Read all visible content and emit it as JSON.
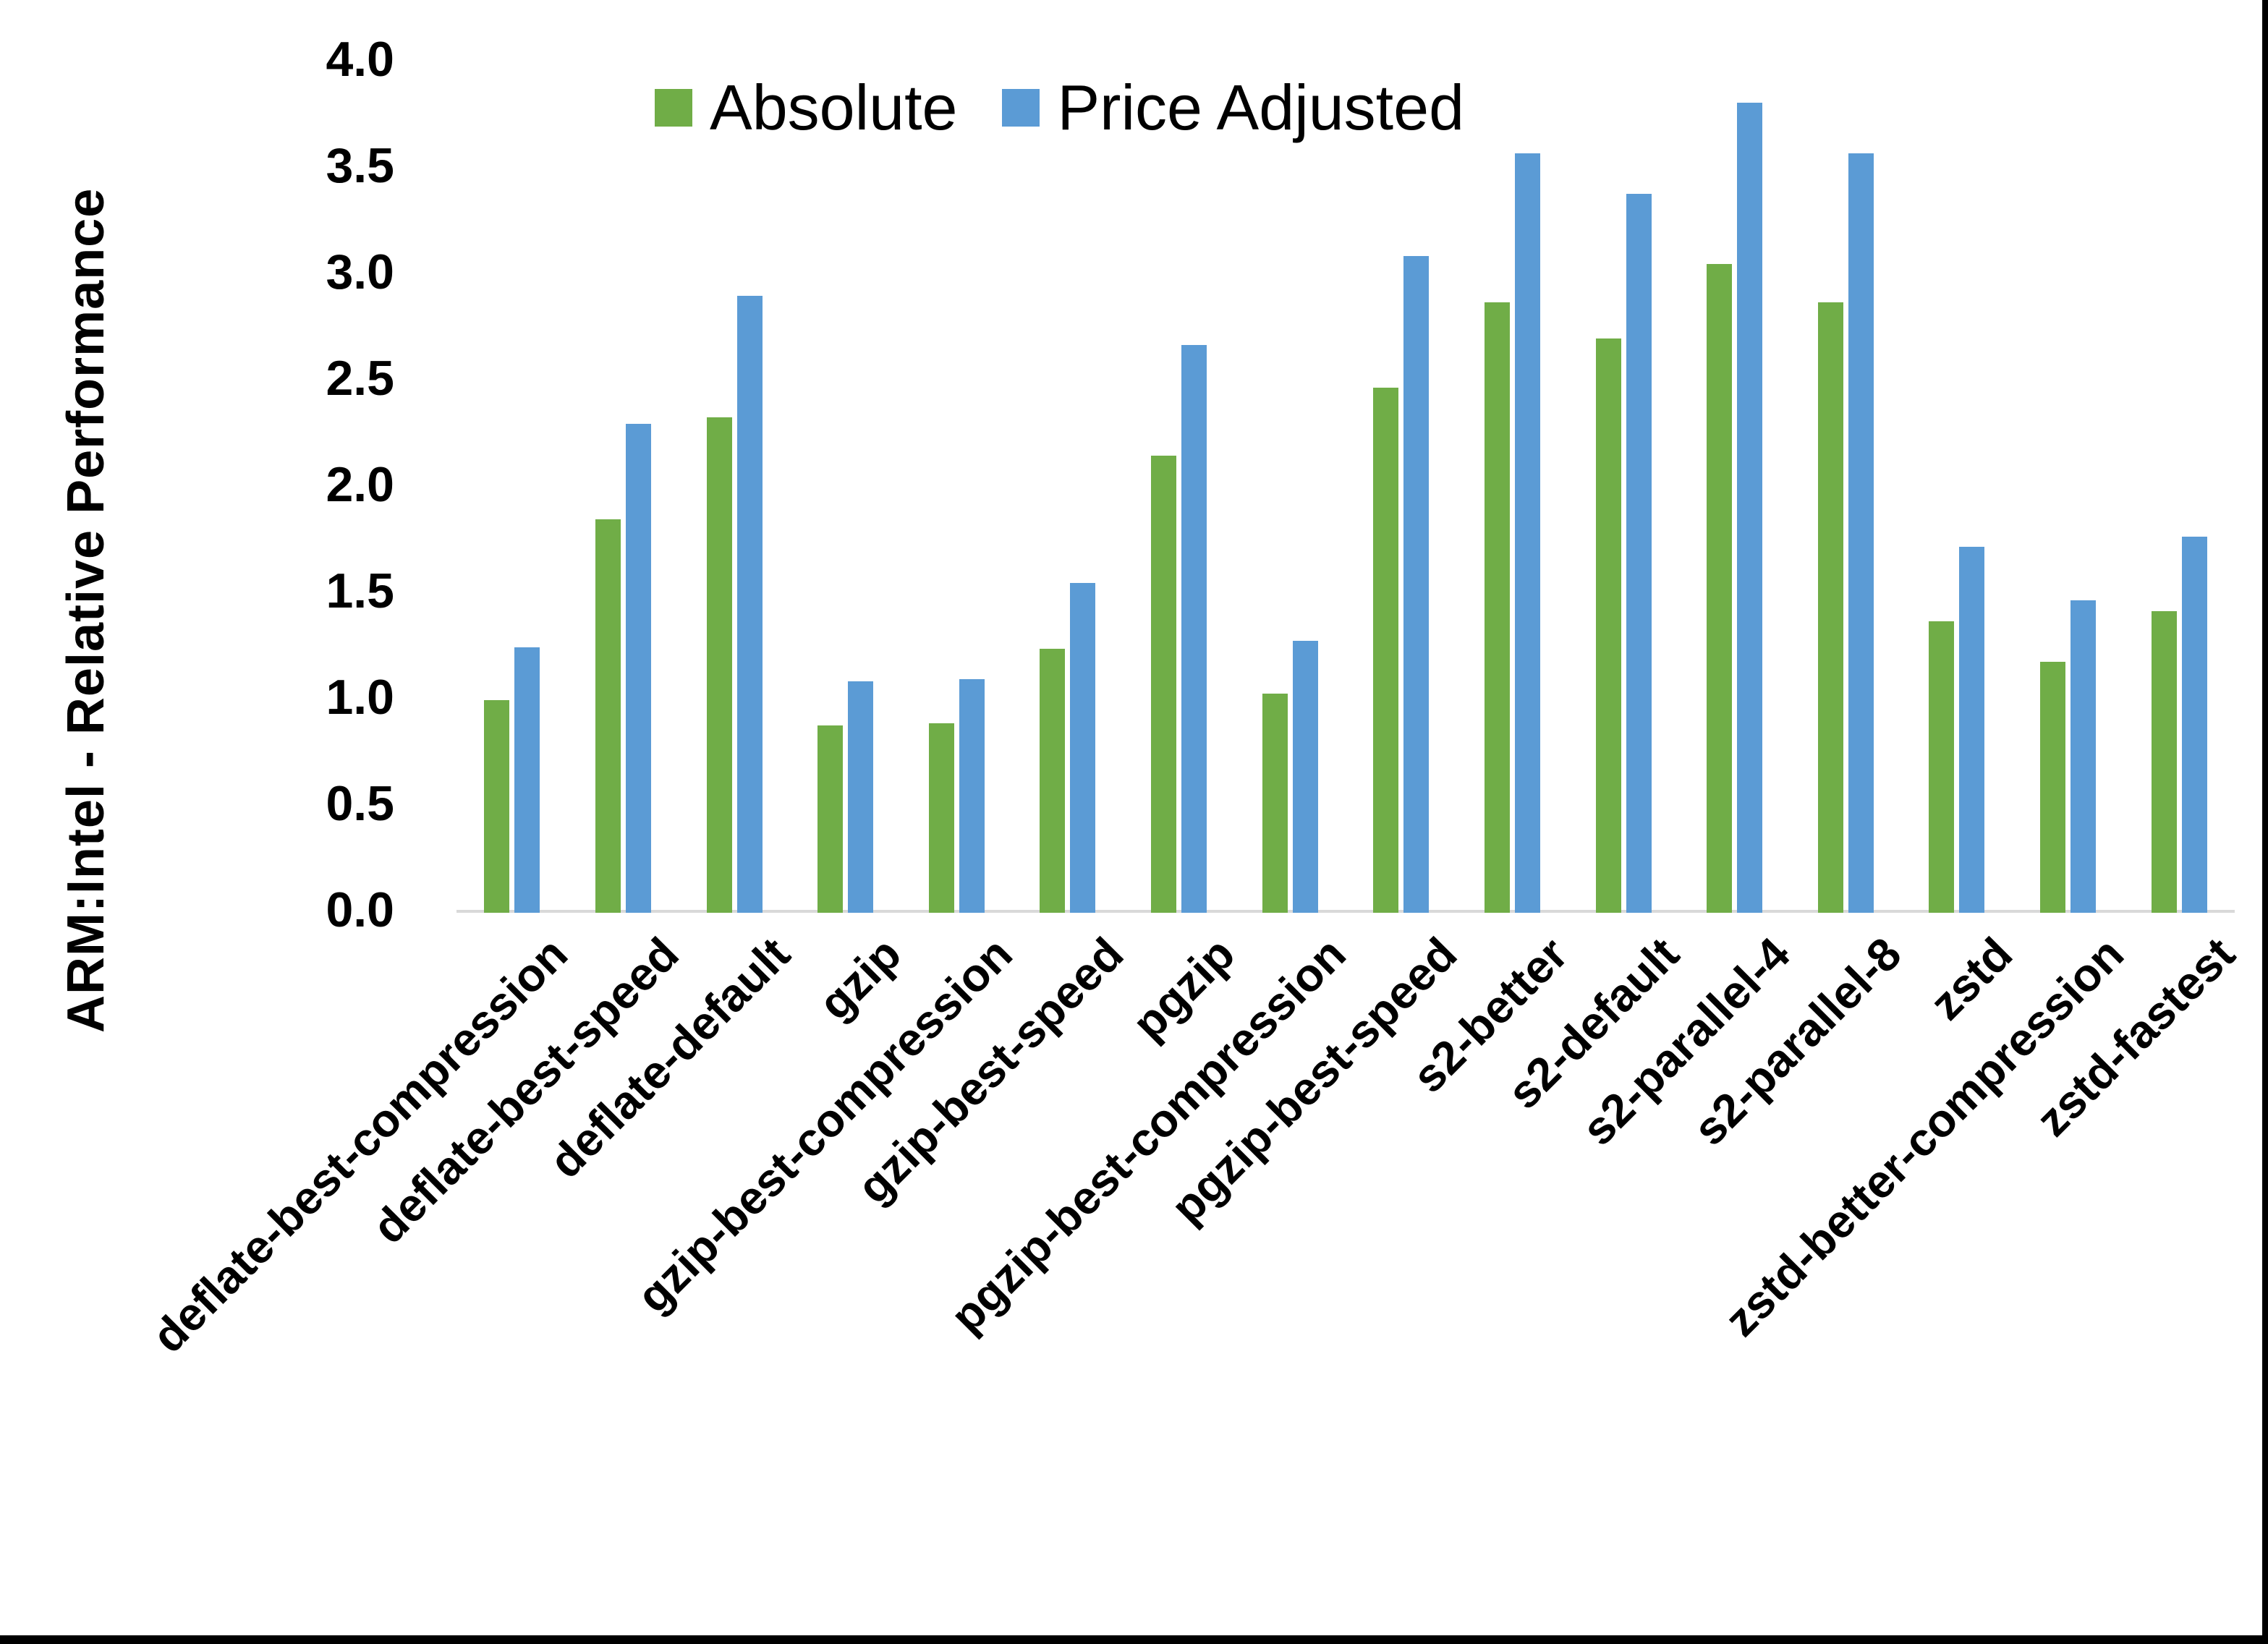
{
  "chart_data": {
    "type": "bar",
    "title": "",
    "xlabel": "",
    "ylabel": "ARM:Intel - Relative Performance",
    "ylim": [
      0.0,
      4.0
    ],
    "ytick_labels": [
      "4.0",
      "3.5",
      "3.0",
      "2.5",
      "2.0",
      "1.5",
      "1.0",
      "0.5",
      "0.0"
    ],
    "grid": "off",
    "legend_position": "top-center",
    "categories": [
      "deflate-best-compression",
      "deflate-best-speed",
      "deflate-default",
      "gzip",
      "gzip-best-compression",
      "gzip-best-speed",
      "pgzip",
      "pgzip-best-compression",
      "pgzip-best-speed",
      "s2-better",
      "s2-default",
      "s2-parallel-4",
      "s2-parallel-8",
      "zstd",
      "zstd-better-compression",
      "zstd-fastest"
    ],
    "series": [
      {
        "name": "Absolute",
        "color": "#70AD47",
        "values": [
          1.0,
          1.85,
          2.33,
          0.88,
          0.89,
          1.24,
          2.15,
          1.03,
          2.47,
          2.87,
          2.7,
          3.05,
          2.87,
          1.37,
          1.18,
          1.42
        ]
      },
      {
        "name": "Price Adjusted",
        "color": "#5B9BD5",
        "values": [
          1.25,
          2.3,
          2.9,
          1.09,
          1.1,
          1.55,
          2.67,
          1.28,
          3.09,
          3.57,
          3.38,
          3.81,
          3.57,
          1.72,
          1.47,
          1.77
        ]
      }
    ]
  },
  "colors": {
    "background": "#FFFFFF",
    "axis_line": "#D9D9D9",
    "text": "#000000",
    "frame_border": "#000000",
    "series_absolute": "#70AD47",
    "series_price_adjusted": "#5B9BD5"
  }
}
